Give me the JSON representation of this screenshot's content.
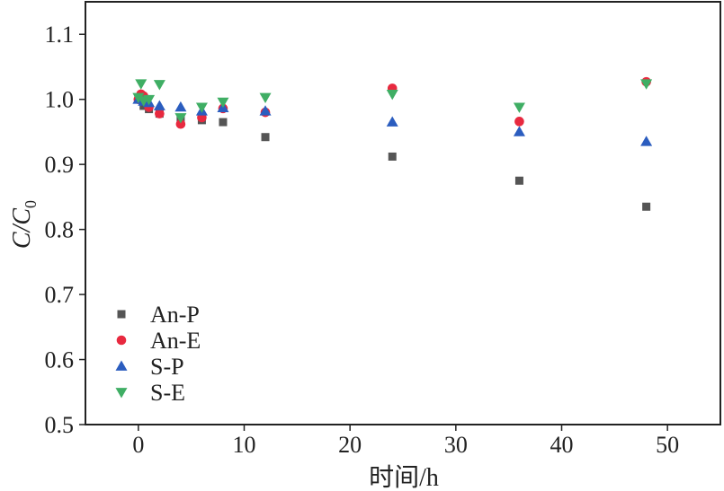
{
  "chart_data": {
    "type": "scatter",
    "xlabel": "时间/h",
    "ylabel_main": "C/C",
    "ylabel_sub": "0",
    "xlim": [
      -5,
      55
    ],
    "ylim": [
      0.5,
      1.15
    ],
    "xticks": [
      0,
      10,
      20,
      30,
      40,
      50
    ],
    "yticks": [
      0.5,
      0.6,
      0.7,
      0.8,
      0.9,
      1.0,
      1.1
    ],
    "xtick_labels": [
      "0",
      "10",
      "20",
      "30",
      "40",
      "50"
    ],
    "ytick_labels": [
      "0.5",
      "0.6",
      "0.7",
      "0.8",
      "0.9",
      "1.0",
      "1.1"
    ],
    "grid": false,
    "legend_position": "lower-left",
    "series": [
      {
        "name": "An-P",
        "marker": "square",
        "color": "#555555",
        "x": [
          0,
          0.5,
          1,
          2,
          4,
          6,
          8,
          12,
          24,
          36,
          48
        ],
        "y": [
          1.0,
          0.99,
          0.985,
          0.978,
          0.972,
          0.968,
          0.965,
          0.942,
          0.912,
          0.875,
          0.835
        ]
      },
      {
        "name": "An-E",
        "marker": "circle",
        "color": "#e8293f",
        "x": [
          0,
          0.25,
          0.5,
          1,
          2,
          4,
          6,
          8,
          12,
          24,
          36,
          48
        ],
        "y": [
          1.0,
          1.008,
          1.005,
          0.988,
          0.978,
          0.962,
          0.972,
          0.986,
          0.98,
          1.017,
          0.966,
          1.027
        ]
      },
      {
        "name": "S-P",
        "marker": "triangle-up",
        "color": "#2b5dbf",
        "x": [
          0,
          0.5,
          1,
          2,
          4,
          6,
          8,
          12,
          24,
          36,
          48
        ],
        "y": [
          1.0,
          0.997,
          0.995,
          0.99,
          0.988,
          0.982,
          0.987,
          0.982,
          0.965,
          0.95,
          0.935
        ]
      },
      {
        "name": "S-E",
        "marker": "triangle-down",
        "color": "#3fae64",
        "x": [
          0,
          0.25,
          0.5,
          1,
          2,
          4,
          6,
          8,
          12,
          24,
          36,
          48
        ],
        "y": [
          1.003,
          1.024,
          0.998,
          1.0,
          1.023,
          0.972,
          0.988,
          0.996,
          1.003,
          1.008,
          0.988,
          1.024
        ]
      }
    ]
  }
}
